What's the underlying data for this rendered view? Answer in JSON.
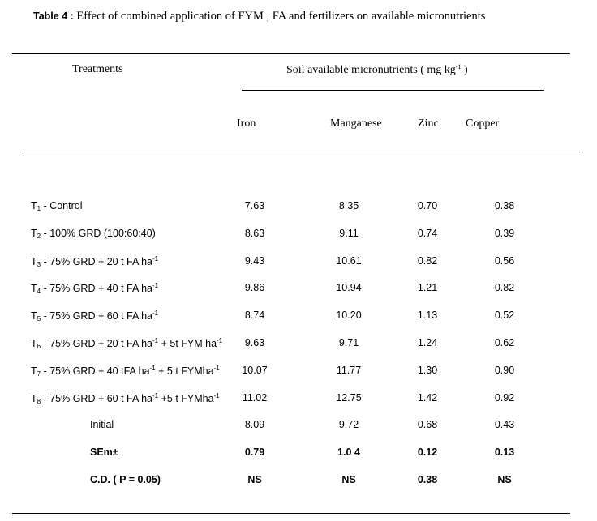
{
  "caption": {
    "label": "Table 4 :",
    "text": "Effect of combined application of  FYM , FA and fertilizers on available micronutrients"
  },
  "header": {
    "treatments": "Treatments",
    "group_prefix": "Soil available micronutrients ( mg kg",
    "group_sup": "-1",
    "group_suffix": "  )",
    "columns": [
      "Iron",
      "Manganese",
      "Zinc",
      "Copper"
    ]
  },
  "rows": [
    {
      "t": "T",
      "sub": "1",
      "parts": [
        " -   Control"
      ],
      "values": [
        "7.63",
        "8.35",
        "0.70",
        "0.38"
      ]
    },
    {
      "t": "T",
      "sub": "2",
      "parts": [
        "  - 100% GRD (100:60:40)"
      ],
      "values": [
        "8.63",
        "9.11",
        "0.74",
        "0.39"
      ]
    },
    {
      "t": "T",
      "sub": "3",
      "parts": [
        "  -  75% GRD + 20 t FA ha",
        "-1"
      ],
      "values": [
        "9.43",
        "10.61",
        "0.82",
        "0.56"
      ]
    },
    {
      "t": "T",
      "sub": "4",
      "parts": [
        "  -  75% GRD + 40 t FA ha",
        "-1"
      ],
      "values": [
        "9.86",
        "10.94",
        "1.21",
        "0.82"
      ]
    },
    {
      "t": "T",
      "sub": "5",
      "parts": [
        "  -  75% GRD + 60 t FA ha",
        "-1"
      ],
      "values": [
        "8.74",
        "10.20",
        "1.13",
        "0.52"
      ]
    },
    {
      "t": "T",
      "sub": "6",
      "parts": [
        "  - 75% GRD + 20 t FA ha",
        "-1",
        " + 5t FYM ha",
        "-1"
      ],
      "values": [
        "9.63",
        "9.71",
        "1.24",
        "0.62"
      ]
    },
    {
      "t": "T",
      "sub": "7",
      "parts": [
        "  - 75% GRD + 40 tFA ha",
        "-1",
        " + 5 t FYMha",
        "-1"
      ],
      "values": [
        "10.07",
        "11.77",
        "1.30",
        "0.90"
      ]
    },
    {
      "t": "T",
      "sub": "8",
      "parts": [
        "  - 75% GRD + 60 t FA ha",
        "-1",
        " +5 t FYMha",
        "-1"
      ],
      "values": [
        "11.02",
        "12.75",
        "1.42",
        "0.92"
      ]
    }
  ],
  "summary": [
    {
      "label": "Initial",
      "bold": false,
      "values": [
        "8.09",
        "9.72",
        "0.68",
        "0.43"
      ]
    },
    {
      "label": "SEm±",
      "bold": true,
      "values": [
        "0.79",
        "1.0 4",
        "0.12",
        "0.13"
      ]
    },
    {
      "label": "C.D. ( P = 0.05)",
      "bold": true,
      "values": [
        "NS",
        "NS",
        "0.38",
        "NS"
      ]
    }
  ]
}
